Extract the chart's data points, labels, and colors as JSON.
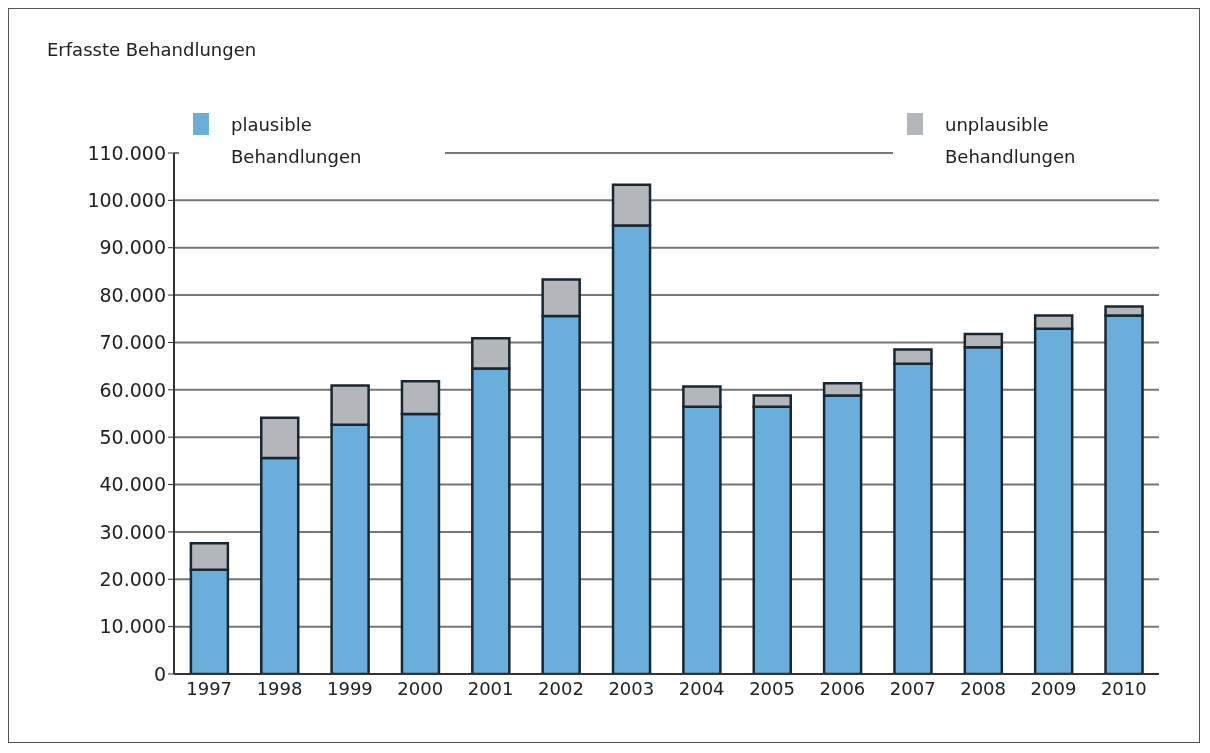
{
  "chart_data": {
    "type": "bar",
    "ylabel": "Erfasste Behandlungen",
    "stacked": true,
    "categories": [
      "1997",
      "1998",
      "1999",
      "2000",
      "2001",
      "2002",
      "2003",
      "2004",
      "2005",
      "2006",
      "2007",
      "2008",
      "2009",
      "2010"
    ],
    "series": [
      {
        "name": "plausible Behandlungen",
        "color": "#6aaedb",
        "values": [
          22000,
          45600,
          52600,
          54900,
          64500,
          75600,
          94700,
          56400,
          56400,
          58800,
          65500,
          69000,
          72900,
          75700
        ]
      },
      {
        "name": "unplausible Behandlungen",
        "color": "#b3b7bb",
        "values": [
          5600,
          8500,
          8300,
          6900,
          6400,
          7700,
          8600,
          4300,
          2400,
          2600,
          3000,
          2800,
          2800,
          1900
        ]
      }
    ],
    "ylim": [
      0,
      110000
    ],
    "yticks": [
      {
        "value": 0,
        "label": "0"
      },
      {
        "value": 10000,
        "label": "10.000"
      },
      {
        "value": 20000,
        "label": "20.000"
      },
      {
        "value": 30000,
        "label": "30.000"
      },
      {
        "value": 40000,
        "label": "40.000"
      },
      {
        "value": 50000,
        "label": "50.000"
      },
      {
        "value": 60000,
        "label": "60.000"
      },
      {
        "value": 70000,
        "label": "70.000"
      },
      {
        "value": 80000,
        "label": "80.000"
      },
      {
        "value": 90000,
        "label": "90.000"
      },
      {
        "value": 100000,
        "label": "100.000"
      },
      {
        "value": 110000,
        "label": "110.000"
      }
    ],
    "grid": "y",
    "legend": "top"
  }
}
